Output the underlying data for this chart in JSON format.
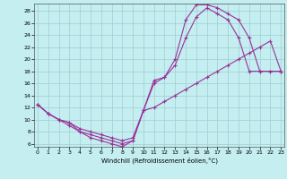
{
  "xlabel": "Windchill (Refroidissement éolien,°C)",
  "bg_color": "#c4eef0",
  "line_color": "#993399",
  "grid_color": "#a0cdd4",
  "xlim_min": -0.3,
  "xlim_max": 23.3,
  "ylim_min": 5.5,
  "ylim_max": 29.2,
  "yticks": [
    6,
    8,
    10,
    12,
    14,
    16,
    18,
    20,
    22,
    24,
    26,
    28
  ],
  "xticks": [
    0,
    1,
    2,
    3,
    4,
    5,
    6,
    7,
    8,
    9,
    10,
    11,
    12,
    13,
    14,
    15,
    16,
    17,
    18,
    19,
    20,
    21,
    22,
    23
  ],
  "series": [
    {
      "x": [
        0,
        1,
        2,
        3,
        4,
        5,
        6,
        7,
        8,
        9,
        10,
        11,
        12,
        13,
        14,
        15,
        16,
        17,
        18,
        19,
        20,
        21,
        22,
        23
      ],
      "y": [
        12.5,
        11,
        10,
        9,
        8,
        7,
        6.5,
        6,
        5.5,
        6.5,
        11.5,
        16,
        17,
        20,
        26.5,
        29,
        29,
        28.5,
        27.5,
        26.5,
        23.5,
        18,
        18,
        18
      ]
    },
    {
      "x": [
        0,
        1,
        2,
        3,
        4,
        5,
        6,
        7,
        8,
        9,
        10,
        11,
        12,
        13,
        14,
        15,
        16,
        17,
        18,
        19,
        20,
        21,
        22,
        23
      ],
      "y": [
        12.5,
        11,
        10,
        9.5,
        8.5,
        8,
        7.5,
        7,
        6.5,
        7,
        11.5,
        16.5,
        17,
        19,
        23.5,
        27,
        28.5,
        27.5,
        26.5,
        23.5,
        18,
        18,
        18,
        18
      ]
    },
    {
      "x": [
        0,
        1,
        2,
        3,
        4,
        5,
        6,
        7,
        8,
        9,
        10,
        11,
        12,
        13,
        14,
        15,
        16,
        17,
        18,
        19,
        20,
        21,
        22,
        23
      ],
      "y": [
        12.5,
        11,
        10,
        9.5,
        8,
        7.5,
        7,
        6.5,
        6,
        6.5,
        11.5,
        12,
        13,
        14,
        15,
        16,
        17,
        18,
        19,
        20,
        21,
        22,
        23,
        18
      ]
    }
  ]
}
